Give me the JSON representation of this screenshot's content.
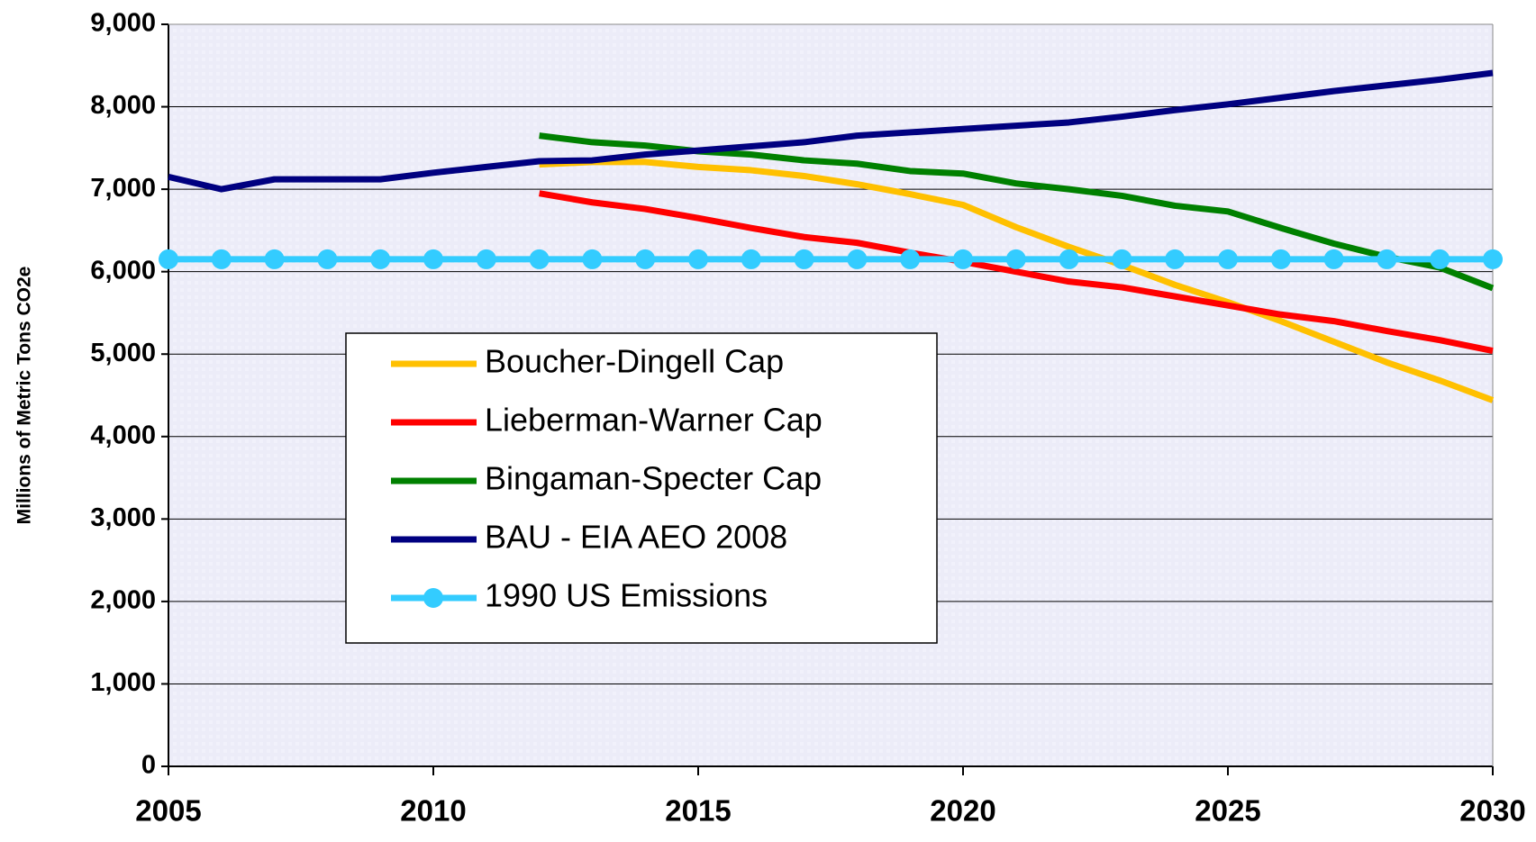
{
  "chart_data": {
    "type": "line",
    "y_label": "Millions of Metric Tons CO2e",
    "x": [
      2005,
      2006,
      2007,
      2008,
      2009,
      2010,
      2011,
      2012,
      2013,
      2014,
      2015,
      2016,
      2017,
      2018,
      2019,
      2020,
      2021,
      2022,
      2023,
      2024,
      2025,
      2026,
      2027,
      2028,
      2029,
      2030
    ],
    "xlim": [
      2005,
      2030
    ],
    "xticks": [
      2005,
      2010,
      2015,
      2020,
      2025,
      2030
    ],
    "ylim": [
      0,
      9000
    ],
    "yticks": [
      0,
      {
        "value": 1000,
        "label": "1,000"
      },
      {
        "value": 2000,
        "label": "2,000"
      },
      {
        "value": 3000,
        "label": "3,000"
      },
      {
        "value": 4000,
        "label": "4,000"
      },
      {
        "value": 5000,
        "label": "5,000"
      },
      {
        "value": 6000,
        "label": "6,000"
      },
      {
        "value": 7000,
        "label": "7,000"
      },
      {
        "value": 8000,
        "label": "8,000"
      },
      {
        "value": 9000,
        "label": "9,000"
      }
    ],
    "grid": true,
    "series": [
      {
        "name": "Boucher-Dingell Cap",
        "color": "#ffc000",
        "values": [
          null,
          null,
          null,
          null,
          null,
          null,
          null,
          7300,
          7330,
          7330,
          7270,
          7230,
          7160,
          7060,
          6940,
          6810,
          6540,
          6300,
          6080,
          5840,
          5630,
          5400,
          5150,
          4900,
          4680,
          4440
        ]
      },
      {
        "name": "Lieberman-Warner Cap",
        "color": "#ff0000",
        "values": [
          null,
          null,
          null,
          null,
          null,
          null,
          null,
          6950,
          6840,
          6760,
          6650,
          6530,
          6420,
          6350,
          6230,
          6120,
          6000,
          5880,
          5810,
          5700,
          5590,
          5480,
          5400,
          5280,
          5170,
          5040
        ]
      },
      {
        "name": "Bingaman-Specter Cap",
        "color": "#008000",
        "values": [
          null,
          null,
          null,
          null,
          null,
          null,
          null,
          7650,
          7570,
          7530,
          7460,
          7420,
          7350,
          7310,
          7220,
          7190,
          7070,
          7000,
          6920,
          6800,
          6730,
          6530,
          6340,
          6180,
          6050,
          5800
        ]
      },
      {
        "name": "BAU - EIA AEO 2008",
        "color": "#000080",
        "values": [
          7150,
          7000,
          7120,
          7120,
          7120,
          7200,
          7270,
          7340,
          7350,
          7420,
          7470,
          7520,
          7570,
          7650,
          7690,
          7730,
          7770,
          7810,
          7880,
          7960,
          8030,
          8110,
          8190,
          8260,
          8330,
          8410
        ]
      },
      {
        "name": "1990 US Emissions",
        "color": "#33ccff",
        "marker": "circle",
        "values": [
          6150,
          6150,
          6150,
          6150,
          6150,
          6150,
          6150,
          6150,
          6150,
          6150,
          6150,
          6150,
          6150,
          6150,
          6150,
          6150,
          6150,
          6150,
          6150,
          6150,
          6150,
          6150,
          6150,
          6150,
          6150,
          6150
        ]
      }
    ]
  }
}
